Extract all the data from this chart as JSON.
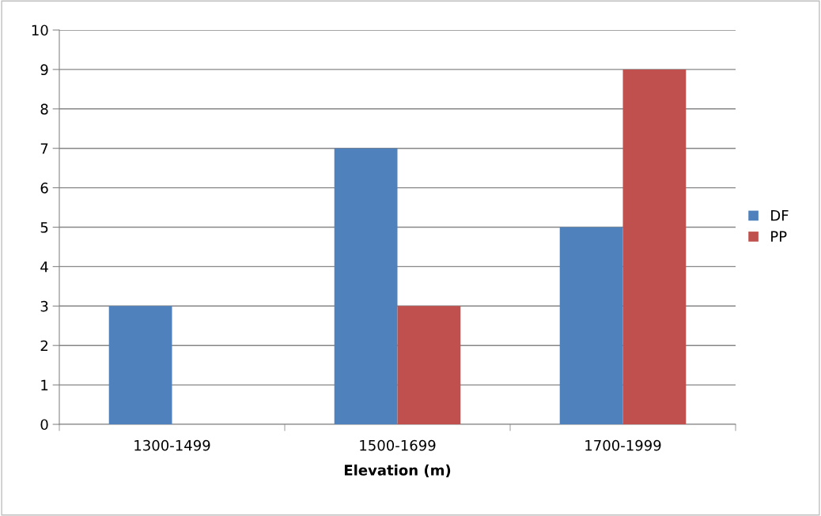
{
  "chart_data": {
    "type": "bar",
    "xlabel": "Elevation (m)",
    "categories": [
      "1300-1499",
      "1500-1699",
      "1700-1999"
    ],
    "series": [
      {
        "name": "DF",
        "color": "#4f81bd",
        "values": [
          3,
          7,
          5
        ]
      },
      {
        "name": "PP",
        "color": "#c0504d",
        "values": [
          0,
          3,
          9
        ]
      }
    ],
    "ylim": [
      0,
      10
    ],
    "yticks": [
      0,
      1,
      2,
      3,
      4,
      5,
      6,
      7,
      8,
      9,
      10
    ],
    "grid": "y",
    "legend": "right"
  }
}
